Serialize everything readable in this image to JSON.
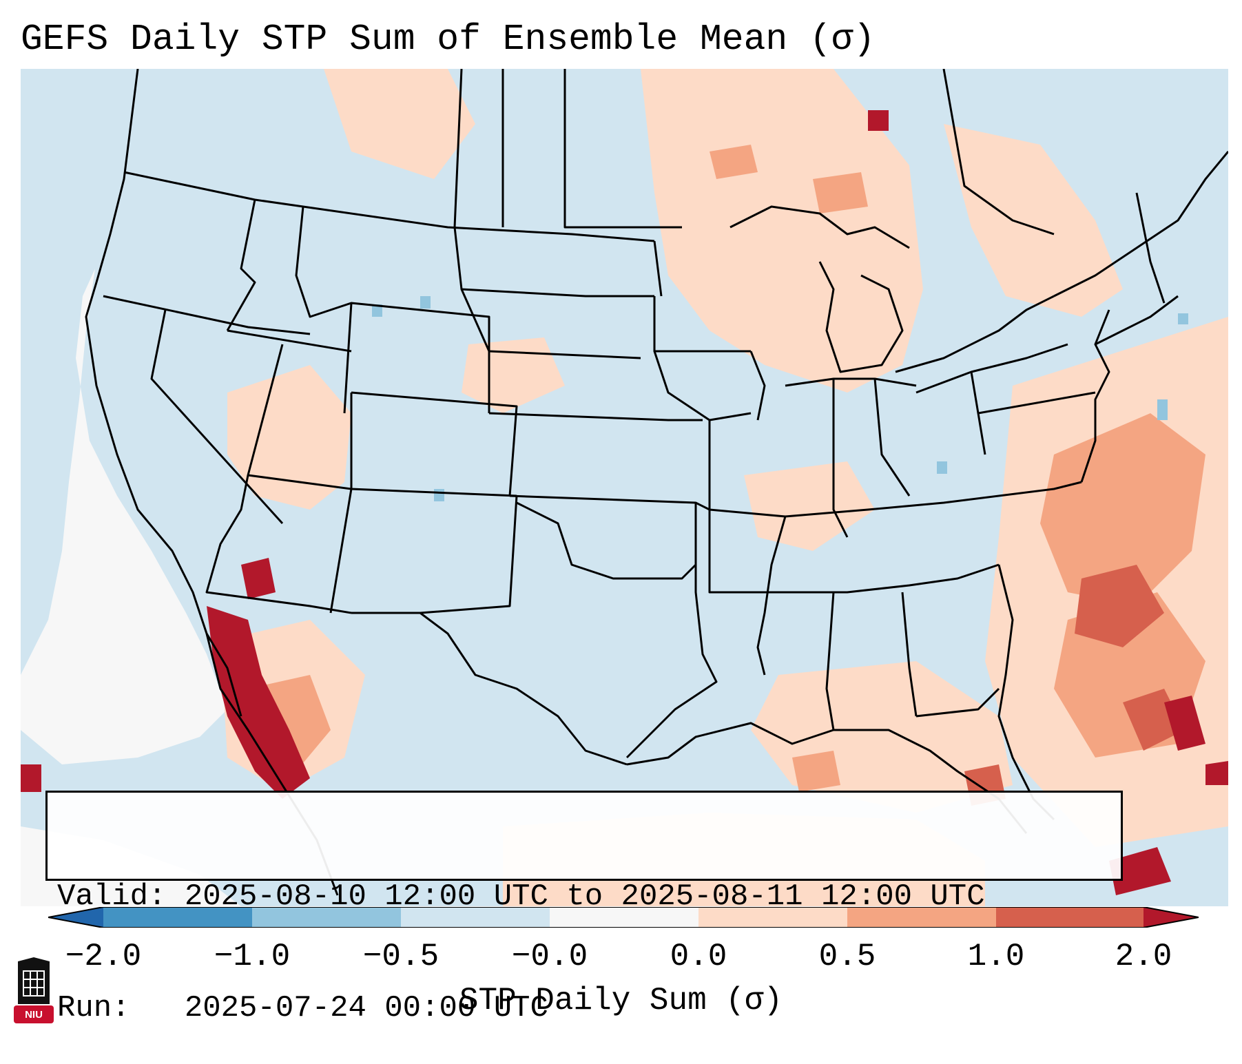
{
  "title": "GEFS Daily STP Sum of Ensemble Mean (σ)",
  "info": {
    "valid_line": "Valid: 2025-08-10 12:00 UTC to 2025-08-11 12:00 UTC",
    "run_line": "Run:   2025-07-24 00:00 UTC"
  },
  "colorbar": {
    "label": "STP Daily Sum (σ)",
    "ticks": [
      "−2.0",
      "−1.0",
      "−0.5",
      "−0.0",
      "0.0",
      "0.5",
      "1.0",
      "2.0"
    ],
    "bins": [
      {
        "from": "-2.0",
        "to": "-1.0",
        "color": "#4393c3"
      },
      {
        "from": "-1.0",
        "to": "-0.5",
        "color": "#92c5de"
      },
      {
        "from": "-0.5",
        "to": "-0.0",
        "color": "#d1e5f0"
      },
      {
        "from": "-0.0",
        "to": "0.0",
        "color": "#f7f7f7"
      },
      {
        "from": "0.0",
        "to": "0.5",
        "color": "#fddbc7"
      },
      {
        "from": "0.5",
        "to": "1.0",
        "color": "#f4a582"
      },
      {
        "from": "1.0",
        "to": "2.0",
        "color": "#d6604d"
      }
    ],
    "extend_low_color": "#2166ac",
    "extend_high_color": "#b2182b"
  },
  "map": {
    "region": "Continental United States",
    "background_color": "#d1e5f0",
    "anomaly_areas": [
      {
        "area": "Northern Plains / Upper Midwest",
        "level": "0.0 to 0.5",
        "color": "#fddbc7"
      },
      {
        "area": "Western Atlantic offshore",
        "level": "0.5 to 1.0",
        "color": "#f4a582"
      },
      {
        "area": "Atlantic east of the Carolinas",
        "level": "1.0 to 2.0",
        "color": "#d6604d"
      },
      {
        "area": "Gulf of California / northwest Mexico",
        "level": "above 2.0",
        "color": "#b2182b"
      },
      {
        "area": "Eastern Pacific off California",
        "level": "-0.0 to 0.0",
        "color": "#f7f7f7"
      }
    ]
  },
  "logo": {
    "text": "NIU",
    "icon": "niu-logo-icon"
  }
}
